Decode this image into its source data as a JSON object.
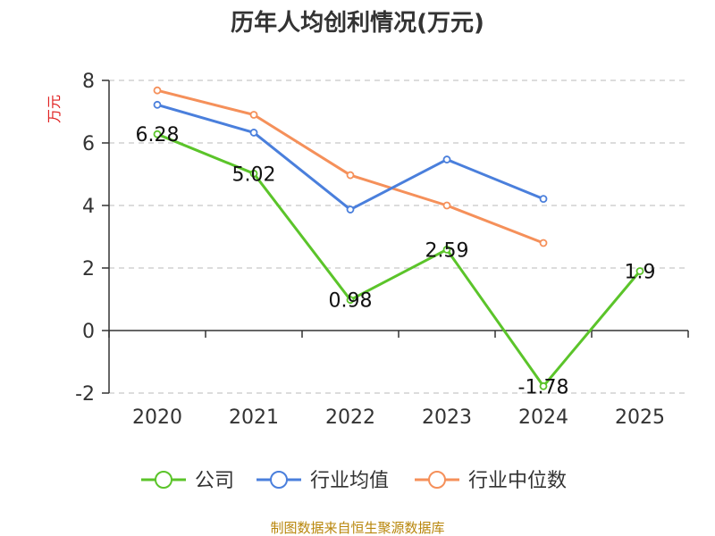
{
  "chart_data": {
    "type": "line",
    "title": "历年人均创利情况(万元)",
    "ylabel": "万元",
    "xlabel": "",
    "categories": [
      "2020",
      "2021",
      "2022",
      "2023",
      "2024",
      "2025"
    ],
    "ylim": [
      -2,
      8
    ],
    "yticks": [
      "8",
      "6",
      "4",
      "2",
      "0",
      "-2"
    ],
    "grid": true,
    "legend_position": "bottom",
    "series": [
      {
        "name": "公司",
        "color": "#5bc42a",
        "values": [
          6.28,
          5.02,
          0.98,
          2.59,
          -1.78,
          1.9
        ],
        "labels": [
          "6.28",
          "5.02",
          "0.98",
          "2.59",
          "-1.78",
          "1.9"
        ]
      },
      {
        "name": "行业均值",
        "color": "#4a7fdc",
        "values": [
          7.22,
          6.33,
          3.87,
          5.47,
          4.21,
          null
        ]
      },
      {
        "name": "行业中位数",
        "color": "#f5905a",
        "values": [
          7.68,
          6.9,
          4.97,
          4.0,
          2.8,
          null
        ]
      }
    ]
  },
  "source": "制图数据来自恒生聚源数据库"
}
